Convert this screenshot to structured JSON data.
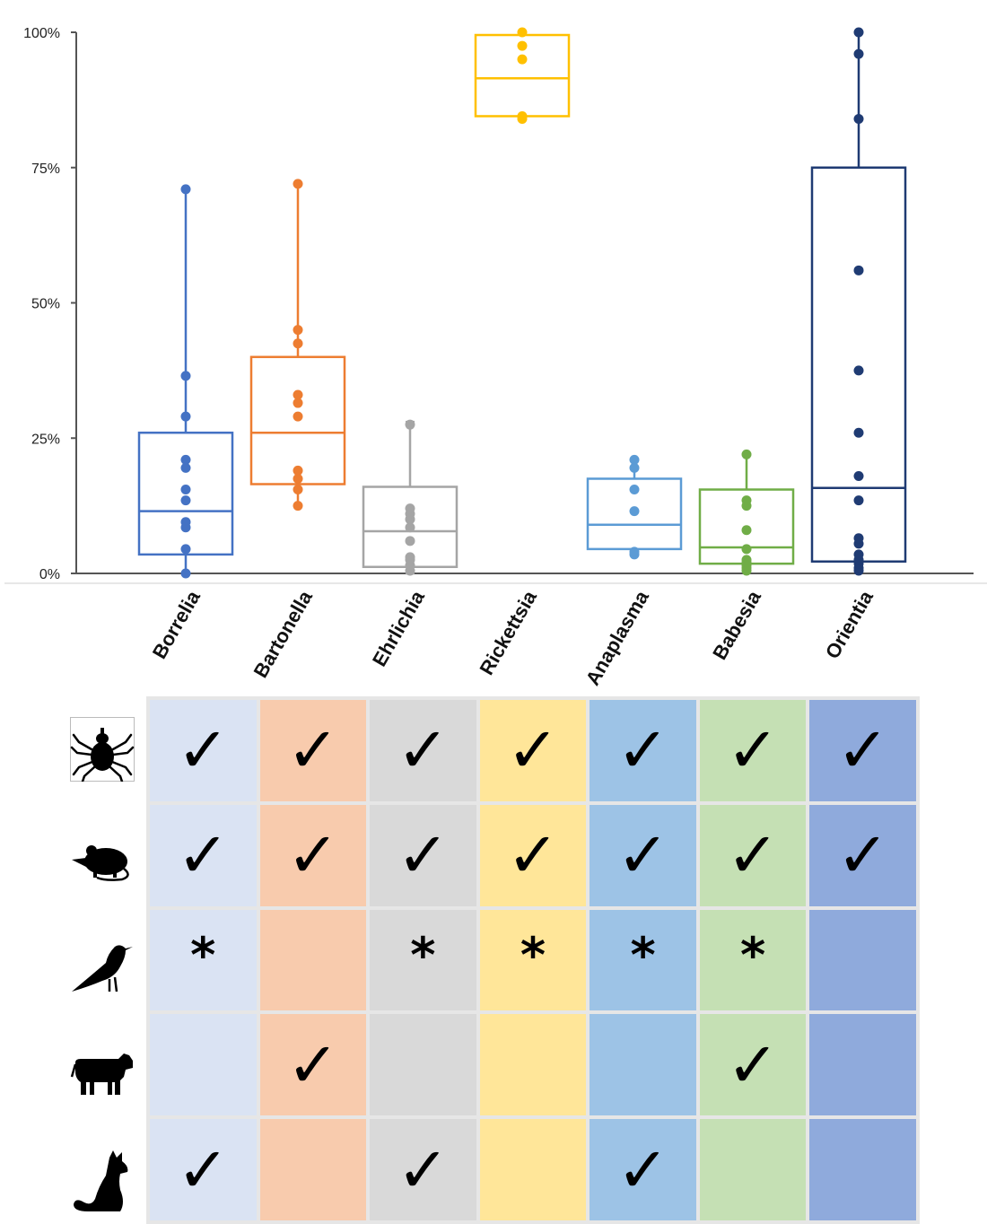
{
  "chart_data": {
    "type": "box",
    "ylim": [
      0,
      100
    ],
    "yticks": [
      "0%",
      "25%",
      "50%",
      "75%",
      "100%"
    ],
    "ytick_values": [
      0,
      25,
      50,
      75,
      100
    ],
    "categories": [
      "Borrelia",
      "Bartonella",
      "Ehrlichia",
      "Rickettsia",
      "Anaplasma",
      "Babesia",
      "Orientia"
    ],
    "series": [
      {
        "category": "Borrelia",
        "color": "#4472C4",
        "q1": 3.5,
        "median": 11.5,
        "q3": 26,
        "whisker_low": 0,
        "whisker_high": 71,
        "points": [
          0,
          4.5,
          8.5,
          9.5,
          13.5,
          15.5,
          19.5,
          21,
          29,
          36.5,
          71
        ]
      },
      {
        "category": "Bartonella",
        "color": "#ED7D31",
        "q1": 16.5,
        "median": 26,
        "q3": 40,
        "whisker_low": 12.5,
        "whisker_high": 72,
        "points": [
          12.5,
          15.5,
          17.5,
          19,
          29,
          31.5,
          33,
          42.5,
          45,
          72
        ]
      },
      {
        "category": "Ehrlichia",
        "color": "#A5A5A5",
        "q1": 1.2,
        "median": 7.8,
        "q3": 16,
        "whisker_low": 0,
        "whisker_high": 28,
        "points": [
          0.5,
          1.5,
          2.5,
          3,
          6,
          8.5,
          10,
          11,
          12,
          27.5
        ]
      },
      {
        "category": "Rickettsia",
        "color": "#FFC000",
        "q1": 84.5,
        "median": 91.5,
        "q3": 99.5,
        "whisker_low": 84,
        "whisker_high": 100,
        "points": [
          84,
          84.5,
          95,
          97.5,
          100
        ]
      },
      {
        "category": "Anaplasma",
        "color": "#5B9BD5",
        "q1": 4.5,
        "median": 9,
        "q3": 17.5,
        "whisker_low": 3.5,
        "whisker_high": 21,
        "points": [
          3.5,
          4,
          11.5,
          15.5,
          19.5,
          21
        ]
      },
      {
        "category": "Babesia",
        "color": "#70AD47",
        "q1": 1.8,
        "median": 4.8,
        "q3": 15.5,
        "whisker_low": 0.5,
        "whisker_high": 22,
        "points": [
          0.5,
          1,
          1.5,
          2,
          2.5,
          4.5,
          8,
          12.5,
          13.5,
          22
        ]
      },
      {
        "category": "Orientia",
        "color": "#1F3B73",
        "q1": 2.2,
        "median": 15.8,
        "q3": 75,
        "whisker_low": 0.5,
        "whisker_high": 100,
        "points": [
          0.5,
          1,
          1.8,
          2.5,
          3.5,
          5.5,
          6.5,
          13.5,
          18,
          26,
          37.5,
          56,
          84,
          96,
          100
        ]
      }
    ]
  },
  "matrix": {
    "hosts": [
      {
        "icon": "tick-icon"
      },
      {
        "icon": "rodent-icon"
      },
      {
        "icon": "bird-icon"
      },
      {
        "icon": "cattle-icon"
      },
      {
        "icon": "dog-icon"
      }
    ],
    "column_colors": [
      "#DAE3F3",
      "#F8CBAD",
      "#D9D9D9",
      "#FFE699",
      "#9DC3E6",
      "#C5E0B4",
      "#8FAADC"
    ],
    "marks": [
      [
        "✓",
        "✓",
        "✓",
        "✓",
        "✓",
        "✓",
        "✓"
      ],
      [
        "✓",
        "✓",
        "✓",
        "✓",
        "✓",
        "✓",
        "✓"
      ],
      [
        "*",
        "",
        "*",
        "*",
        "*",
        "*",
        ""
      ],
      [
        "",
        "✓",
        "",
        "",
        "",
        "✓",
        ""
      ],
      [
        "✓",
        "",
        "✓",
        "",
        "✓",
        "",
        ""
      ]
    ]
  }
}
